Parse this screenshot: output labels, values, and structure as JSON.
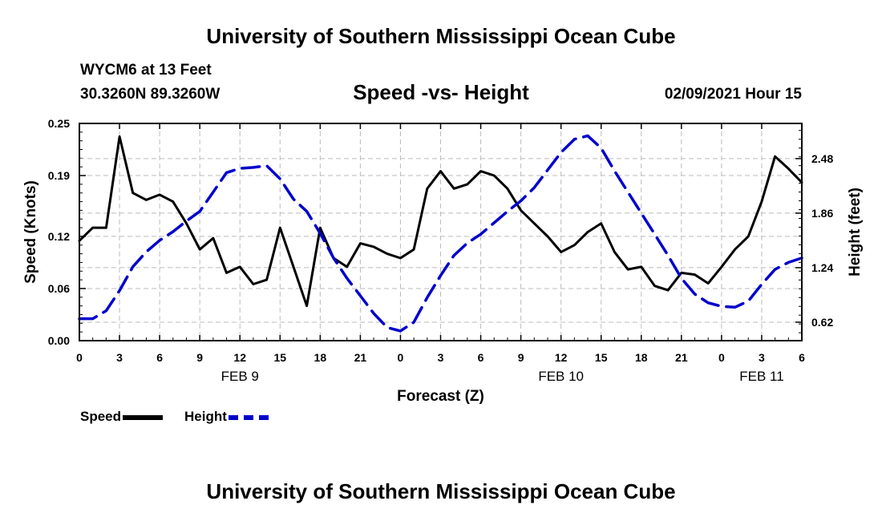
{
  "page": {
    "title_top": "University of Southern Mississippi Ocean Cube",
    "title_bottom": "University of Southern Mississippi Ocean Cube",
    "station": "WYCM6 at 13 Feet",
    "coords": "30.3260N 89.3260W",
    "date": "02/09/2021 Hour 15"
  },
  "legend": {
    "speed": "Speed",
    "height": "Height"
  },
  "colors": {
    "speed": "#000000",
    "height": "#0000cc",
    "grid": "#bbbbbb"
  },
  "chart_data": {
    "type": "line",
    "title": "Speed -vs- Height",
    "xlabel": "Forecast (Z)",
    "ylabel": "Speed (Knots)",
    "y2label": "Height (feet)",
    "xlim": [
      0,
      54
    ],
    "ylim": [
      0,
      0.25
    ],
    "y2lim": [
      0.41,
      2.88
    ],
    "x_ticks": [
      0,
      3,
      6,
      9,
      12,
      15,
      18,
      21,
      24,
      27,
      30,
      33,
      36,
      39,
      42,
      45,
      48,
      51,
      54
    ],
    "x_tick_labels": [
      "0",
      "3",
      "6",
      "9",
      "12",
      "15",
      "18",
      "21",
      "0",
      "3",
      "6",
      "9",
      "12",
      "15",
      "18",
      "21",
      "0",
      "3",
      "6"
    ],
    "y_ticks": [
      0.0,
      0.06,
      0.12,
      0.19,
      0.25
    ],
    "y_tick_labels": [
      "0.00",
      "0.06",
      "0.12",
      "0.19",
      "0.25"
    ],
    "y2_ticks": [
      0.62,
      1.24,
      1.86,
      2.48
    ],
    "y2_tick_labels": [
      "0.62",
      "1.24",
      "1.86",
      "2.48"
    ],
    "day_labels": [
      {
        "x": 12,
        "label": "FEB 9"
      },
      {
        "x": 36,
        "label": "FEB 10"
      },
      {
        "x": 51,
        "label": "FEB 11"
      }
    ],
    "grid": true,
    "series": [
      {
        "name": "Speed",
        "axis": "left",
        "style": "solid",
        "x": [
          0,
          1,
          2,
          3,
          4,
          5,
          6,
          7,
          8,
          9,
          10,
          11,
          12,
          13,
          14,
          15,
          16,
          17,
          18,
          19,
          20,
          21,
          22,
          23,
          24,
          25,
          26,
          27,
          28,
          29,
          30,
          31,
          32,
          33,
          34,
          35,
          36,
          37,
          38,
          39,
          40,
          41,
          42,
          43,
          44,
          45,
          46,
          47,
          48,
          49,
          50,
          51,
          52,
          53,
          54
        ],
        "values": [
          0.115,
          0.13,
          0.13,
          0.235,
          0.17,
          0.162,
          0.168,
          0.16,
          0.135,
          0.105,
          0.118,
          0.078,
          0.085,
          0.065,
          0.07,
          0.13,
          0.085,
          0.04,
          0.13,
          0.095,
          0.085,
          0.112,
          0.108,
          0.1,
          0.095,
          0.105,
          0.175,
          0.195,
          0.175,
          0.18,
          0.195,
          0.19,
          0.175,
          0.15,
          0.135,
          0.12,
          0.102,
          0.11,
          0.125,
          0.135,
          0.102,
          0.082,
          0.085,
          0.063,
          0.058,
          0.078,
          0.076,
          0.066,
          0.085,
          0.105,
          0.12,
          0.16,
          0.212,
          0.198,
          0.182
        ]
      },
      {
        "name": "Height",
        "axis": "right",
        "style": "dashed",
        "x": [
          0,
          1,
          2,
          3,
          4,
          5,
          6,
          7,
          8,
          9,
          10,
          11,
          12,
          13,
          14,
          15,
          16,
          17,
          18,
          19,
          20,
          21,
          22,
          23,
          24,
          25,
          26,
          27,
          28,
          29,
          30,
          31,
          32,
          33,
          34,
          35,
          36,
          37,
          38,
          39,
          40,
          41,
          42,
          43,
          44,
          45,
          46,
          47,
          48,
          49,
          50,
          51,
          52,
          53,
          54
        ],
        "values": [
          0.66,
          0.66,
          0.75,
          0.98,
          1.25,
          1.42,
          1.55,
          1.65,
          1.77,
          1.88,
          2.1,
          2.32,
          2.37,
          2.38,
          2.4,
          2.25,
          2.02,
          1.88,
          1.63,
          1.35,
          1.12,
          0.92,
          0.72,
          0.56,
          0.52,
          0.62,
          0.9,
          1.15,
          1.38,
          1.52,
          1.62,
          1.75,
          1.88,
          2.0,
          2.15,
          2.35,
          2.55,
          2.7,
          2.74,
          2.6,
          2.34,
          2.1,
          1.86,
          1.62,
          1.38,
          1.12,
          0.94,
          0.84,
          0.8,
          0.79,
          0.86,
          1.05,
          1.22,
          1.3,
          1.35
        ]
      }
    ]
  }
}
